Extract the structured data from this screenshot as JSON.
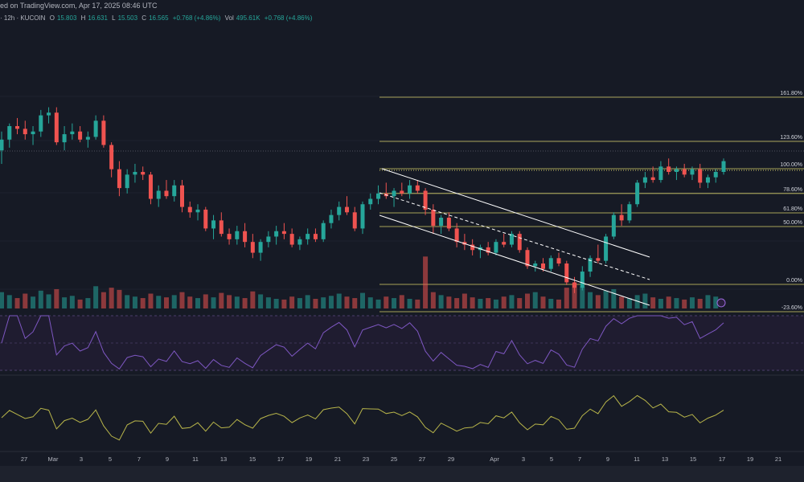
{
  "header": {
    "published": "ed on TradingView.com, Apr 17, 2025 08:46 UTC",
    "symbol_prefix": "· 12h · KUCOIN",
    "o_label": "O",
    "o_val": "15.803",
    "h_label": "H",
    "h_val": "16.631",
    "l_label": "L",
    "l_val": "15.503",
    "c_label": "C",
    "c_val": "16.565",
    "chg": "+0.768 (+4.86%)",
    "vol_label": "Vol",
    "vol_val": "495.61K",
    "vol_chg": "+0.768 (+4.86%)"
  },
  "colors": {
    "background": "#161a25",
    "up": "#26a69a",
    "down": "#ef5350",
    "fib": "#d8d06a",
    "channel": "#ffffff",
    "rsi": "#7e57c2",
    "osc": "#b8b54a"
  },
  "chart_data": {
    "type": "candlestick",
    "x_axis_ticks": [
      "27",
      "Mar",
      "3",
      "5",
      "7",
      "9",
      "11",
      "13",
      "15",
      "17",
      "19",
      "21",
      "23",
      "25",
      "27",
      "29",
      "Apr",
      "3",
      "5",
      "7",
      "9",
      "11",
      "13",
      "15",
      "17",
      "19",
      "21"
    ],
    "fib_levels": [
      {
        "label": "161.80%",
        "value": 1.618
      },
      {
        "label": "123.60%",
        "value": 1.236
      },
      {
        "label": "100.00%",
        "value": 1.0
      },
      {
        "label": "78.60%",
        "value": 0.786
      },
      {
        "label": "61.80%",
        "value": 0.618
      },
      {
        "label": "50.00%",
        "value": 0.5
      },
      {
        "label": "0.00%",
        "value": 0.0
      },
      {
        "label": "-23.60%",
        "value": -0.236
      }
    ],
    "candles": [
      [
        15.9,
        16.6,
        15.4,
        16.3
      ],
      [
        16.3,
        16.9,
        16.0,
        16.8
      ],
      [
        16.8,
        17.1,
        16.5,
        16.7
      ],
      [
        16.7,
        17.0,
        16.3,
        16.5
      ],
      [
        16.5,
        16.8,
        16.1,
        16.6
      ],
      [
        16.6,
        17.4,
        16.4,
        17.2
      ],
      [
        17.2,
        17.5,
        16.9,
        17.3
      ],
      [
        17.3,
        17.5,
        16.1,
        16.2
      ],
      [
        16.2,
        16.8,
        15.9,
        16.5
      ],
      [
        16.5,
        16.9,
        16.3,
        16.6
      ],
      [
        16.6,
        16.8,
        16.2,
        16.3
      ],
      [
        16.3,
        16.6,
        16.0,
        16.4
      ],
      [
        16.4,
        17.2,
        16.3,
        17.0
      ],
      [
        17.0,
        17.2,
        16.0,
        16.1
      ],
      [
        16.1,
        16.2,
        14.9,
        15.2
      ],
      [
        15.2,
        15.5,
        14.2,
        14.5
      ],
      [
        14.5,
        15.2,
        14.3,
        15.0
      ],
      [
        15.0,
        15.4,
        14.7,
        15.1
      ],
      [
        15.1,
        15.3,
        14.8,
        15.0
      ],
      [
        15.0,
        15.1,
        13.9,
        14.1
      ],
      [
        14.1,
        14.6,
        13.8,
        14.4
      ],
      [
        14.4,
        14.8,
        14.1,
        14.2
      ],
      [
        14.2,
        14.8,
        14.0,
        14.6
      ],
      [
        14.6,
        14.8,
        13.6,
        13.8
      ],
      [
        13.8,
        14.0,
        13.4,
        13.6
      ],
      [
        13.6,
        13.9,
        13.3,
        13.7
      ],
      [
        13.7,
        13.8,
        12.9,
        13.0
      ],
      [
        13.0,
        13.5,
        12.6,
        13.3
      ],
      [
        13.3,
        13.6,
        12.7,
        12.8
      ],
      [
        12.8,
        13.0,
        12.4,
        12.6
      ],
      [
        12.6,
        13.1,
        12.4,
        12.9
      ],
      [
        12.9,
        13.2,
        12.3,
        12.5
      ],
      [
        12.5,
        12.8,
        11.9,
        12.1
      ],
      [
        12.1,
        12.6,
        11.8,
        12.5
      ],
      [
        12.5,
        12.9,
        12.3,
        12.7
      ],
      [
        12.7,
        13.1,
        12.4,
        12.9
      ],
      [
        12.9,
        13.2,
        12.6,
        12.8
      ],
      [
        12.8,
        13.0,
        12.3,
        12.4
      ],
      [
        12.4,
        12.7,
        12.2,
        12.6
      ],
      [
        12.6,
        13.0,
        12.4,
        12.8
      ],
      [
        12.8,
        13.0,
        12.5,
        12.6
      ],
      [
        12.6,
        13.3,
        12.5,
        13.2
      ],
      [
        13.2,
        13.7,
        13.0,
        13.5
      ],
      [
        13.5,
        14.0,
        13.3,
        13.8
      ],
      [
        13.8,
        14.2,
        13.5,
        13.6
      ],
      [
        13.6,
        13.8,
        12.9,
        13.0
      ],
      [
        13.0,
        14.0,
        12.8,
        13.9
      ],
      [
        13.9,
        14.3,
        13.7,
        14.1
      ],
      [
        14.1,
        14.6,
        13.9,
        14.3
      ],
      [
        14.3,
        14.7,
        14.1,
        14.2
      ],
      [
        14.2,
        14.5,
        13.8,
        14.4
      ],
      [
        14.4,
        14.7,
        14.2,
        14.3
      ],
      [
        14.3,
        14.8,
        14.1,
        14.6
      ],
      [
        14.6,
        14.8,
        14.3,
        14.4
      ],
      [
        14.4,
        14.5,
        13.5,
        13.7
      ],
      [
        13.7,
        13.9,
        12.8,
        13.1
      ],
      [
        13.1,
        13.5,
        12.8,
        13.4
      ],
      [
        13.4,
        13.6,
        12.9,
        13.0
      ],
      [
        13.0,
        13.2,
        12.3,
        12.5
      ],
      [
        12.5,
        12.8,
        12.2,
        12.4
      ],
      [
        12.4,
        12.6,
        12.0,
        12.2
      ],
      [
        12.2,
        12.4,
        11.9,
        12.3
      ],
      [
        12.3,
        12.5,
        12.0,
        12.1
      ],
      [
        12.1,
        12.6,
        12.0,
        12.5
      ],
      [
        12.5,
        12.8,
        12.3,
        12.4
      ],
      [
        12.4,
        12.9,
        12.3,
        12.8
      ],
      [
        12.8,
        12.9,
        12.1,
        12.2
      ],
      [
        12.2,
        12.3,
        11.5,
        11.6
      ],
      [
        11.6,
        11.8,
        11.4,
        11.7
      ],
      [
        11.7,
        11.9,
        11.4,
        11.5
      ],
      [
        11.5,
        12.0,
        11.4,
        11.9
      ],
      [
        11.9,
        12.1,
        11.6,
        11.7
      ],
      [
        11.7,
        11.8,
        10.9,
        11.0
      ],
      [
        11.0,
        11.2,
        10.6,
        10.8
      ],
      [
        10.8,
        11.6,
        10.7,
        11.4
      ],
      [
        11.4,
        12.0,
        11.2,
        11.9
      ],
      [
        11.9,
        12.4,
        11.7,
        11.8
      ],
      [
        11.8,
        12.8,
        11.7,
        12.7
      ],
      [
        12.7,
        13.6,
        12.6,
        13.5
      ],
      [
        13.5,
        13.9,
        13.1,
        13.3
      ],
      [
        13.3,
        14.0,
        13.2,
        13.9
      ],
      [
        13.9,
        14.8,
        13.8,
        14.7
      ],
      [
        14.7,
        15.1,
        14.5,
        14.9
      ],
      [
        14.9,
        15.3,
        14.7,
        14.8
      ],
      [
        14.8,
        15.5,
        14.7,
        15.3
      ],
      [
        15.3,
        15.6,
        15.0,
        15.1
      ],
      [
        15.1,
        15.3,
        14.8,
        15.2
      ],
      [
        15.2,
        15.4,
        14.9,
        15.0
      ],
      [
        15.0,
        15.3,
        14.8,
        15.2
      ],
      [
        15.2,
        15.4,
        14.5,
        14.7
      ],
      [
        14.7,
        15.0,
        14.5,
        14.9
      ],
      [
        14.9,
        15.2,
        14.7,
        15.1
      ],
      [
        15.1,
        15.6,
        15.0,
        15.5
      ]
    ],
    "volumes": [
      22,
      18,
      14,
      20,
      16,
      24,
      19,
      26,
      15,
      17,
      12,
      14,
      30,
      22,
      28,
      25,
      18,
      16,
      14,
      20,
      17,
      15,
      18,
      22,
      16,
      14,
      19,
      15,
      21,
      18,
      16,
      14,
      23,
      19,
      15,
      13,
      12,
      16,
      14,
      18,
      13,
      15,
      17,
      20,
      16,
      14,
      21,
      15,
      12,
      16,
      14,
      18,
      13,
      12,
      70,
      22,
      18,
      16,
      14,
      20,
      15,
      13,
      14,
      12,
      16,
      18,
      14,
      20,
      22,
      16,
      13,
      12,
      28,
      34,
      30,
      22,
      18,
      24,
      26,
      16,
      14,
      18,
      20,
      15,
      13,
      16,
      14,
      12,
      15,
      13,
      18,
      16
    ],
    "rsi_range": [
      20,
      80
    ],
    "osc_label": ""
  }
}
